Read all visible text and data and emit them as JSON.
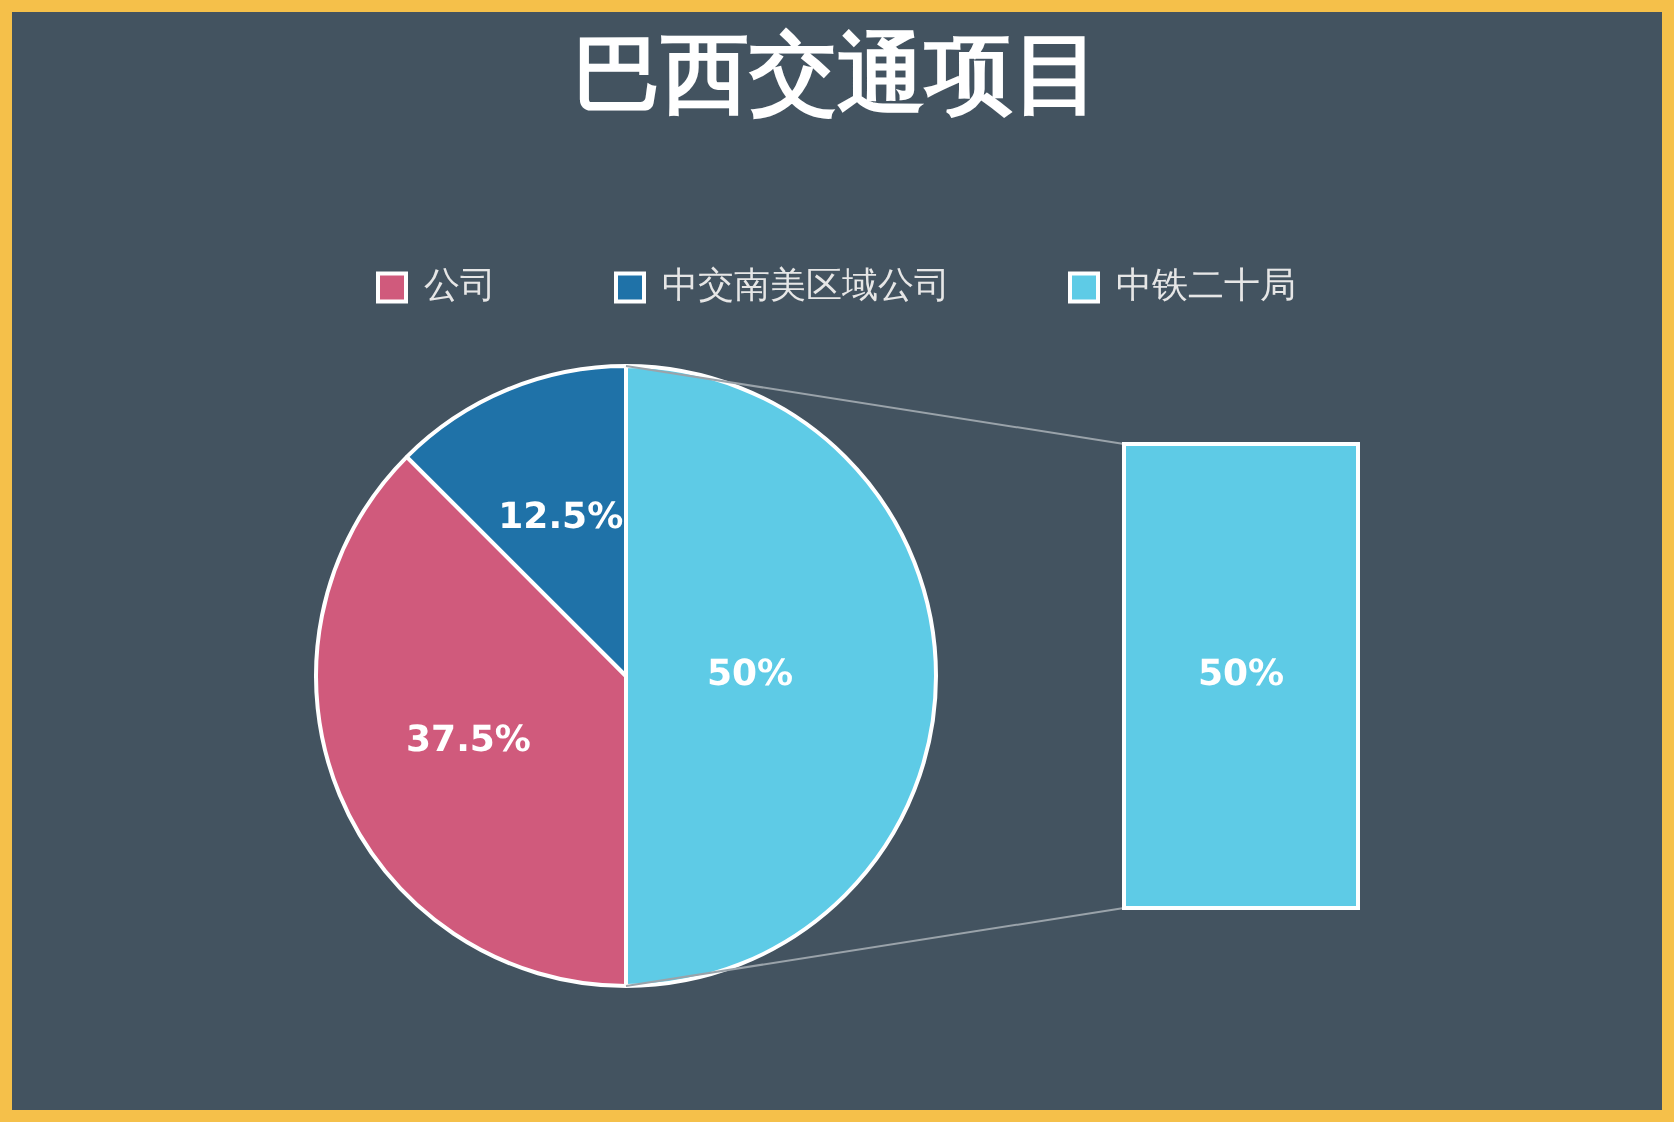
{
  "chart_data": {
    "type": "pie",
    "title": "巴西交通项目",
    "categories": [
      "公司",
      "中交南美区域公司",
      "中铁二十局"
    ],
    "values": [
      37.5,
      12.5,
      50
    ],
    "value_labels": [
      "37.5%",
      "12.5%",
      "50%"
    ],
    "colors": [
      "#d05a7c",
      "#1f72a8",
      "#5ecbe6"
    ],
    "legend": "top"
  }
}
